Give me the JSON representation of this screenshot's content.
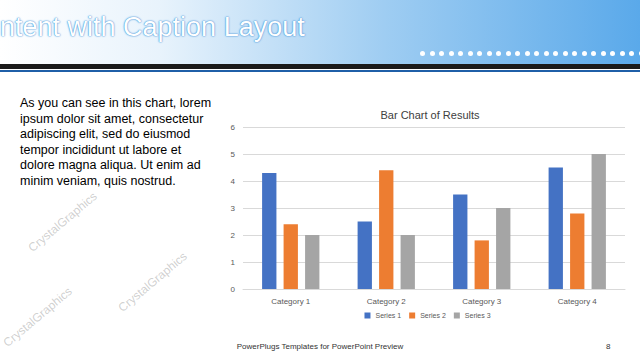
{
  "slide": {
    "title": "ntent with Caption Layout",
    "body_lines": [
      "As you can see in this chart, lorem",
      "ipsum dolor sit amet, consectetur",
      "adipiscing elit, sed do eiusmod",
      "tempor incididunt ut labore et",
      "dolore magna aliqua. Ut enim ad",
      "minim veniam, quis nostrud."
    ],
    "footer": "PowerPlugs Templates for PowerPoint Preview",
    "page_number": "8",
    "watermark": "CrystalGraphics"
  },
  "chart_data": {
    "type": "bar",
    "title": "Bar Chart of Results",
    "categories": [
      "Category 1",
      "Category 2",
      "Category 3",
      "Category 4"
    ],
    "series": [
      {
        "name": "Series 1",
        "color": "#4472c4",
        "values": [
          4.3,
          2.5,
          3.5,
          4.5
        ]
      },
      {
        "name": "Series 2",
        "color": "#ed7d31",
        "values": [
          2.4,
          4.4,
          1.8,
          2.8
        ]
      },
      {
        "name": "Series 3",
        "color": "#a5a5a5",
        "values": [
          2,
          2,
          3,
          5
        ]
      }
    ],
    "ylim": [
      0,
      6
    ],
    "yticks": [
      0,
      1,
      2,
      3,
      4,
      5,
      6
    ],
    "grid": true,
    "legend": "bottom"
  }
}
